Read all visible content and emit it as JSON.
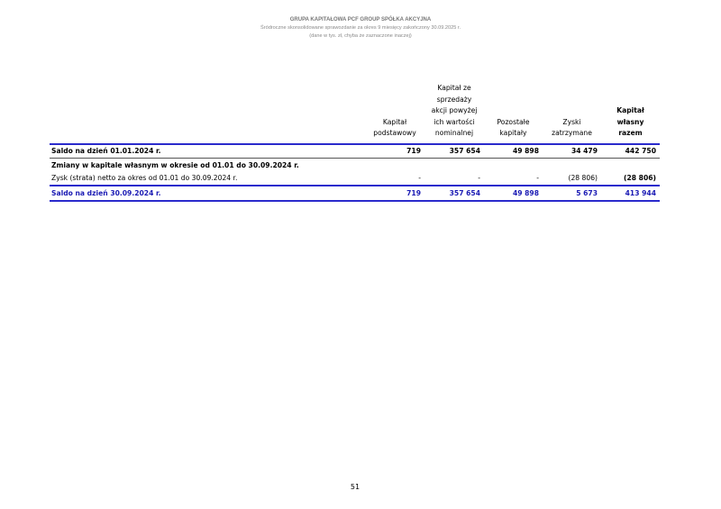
{
  "header": {
    "company": "GRUPA KAPITAŁOWA PCF GROUP SPÓŁKA AKCYJNA",
    "report": "Śródroczne skonsolidowane sprawozdanie za okres 9 miesięcy zakończony 30.09.2025 r.",
    "units": "(dane w tys. zł, chyba że zaznaczone inaczej)"
  },
  "table": {
    "columns": [
      "Kapitał podstawowy",
      "Kapitał ze sprzedaży akcji powyżej ich wartości nominalnej",
      "Pozostałe kapitały",
      "Zyski zatrzymane",
      "Kapitał własny razem"
    ],
    "rows": [
      {
        "label": "Saldo na dzień 01.01.2024 r.",
        "values": [
          "719",
          "357 654",
          "49 898",
          "34 479",
          "442 750"
        ]
      },
      {
        "label": "Zmiany w kapitale własnym w okresie od 01.01 do 30.09.2024 r.",
        "values": [
          "",
          "",
          "",
          "",
          ""
        ]
      },
      {
        "label": "Zysk (strata) netto za okres od 01.01 do 30.09.2024 r.",
        "values": [
          "-",
          "-",
          "-",
          "(28 806)",
          "(28 806)"
        ]
      },
      {
        "label": "Saldo na dzień 30.09.2024 r.",
        "values": [
          "719",
          "357 654",
          "49 898",
          "5 673",
          "413 944"
        ]
      }
    ]
  },
  "accent_color": "#1a1ab4",
  "page_number": "51"
}
